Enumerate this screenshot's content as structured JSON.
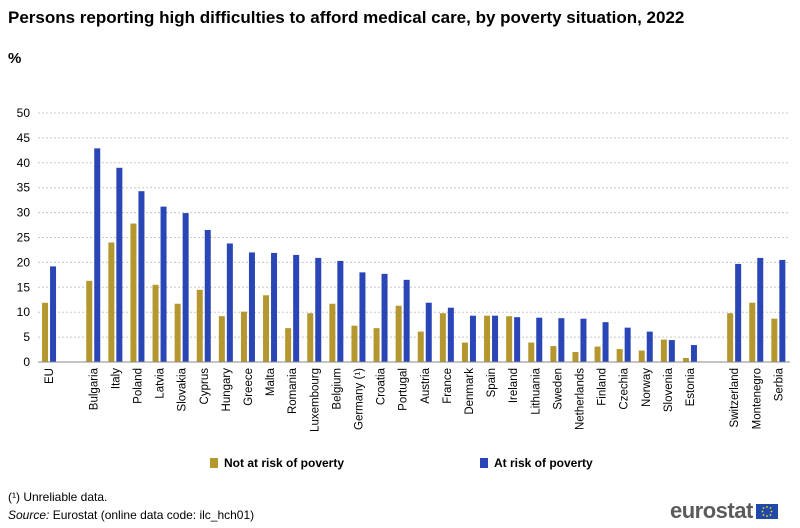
{
  "header": {
    "title": "Persons reporting high difficulties to afford medical care, by poverty situation, 2022",
    "unit": "%"
  },
  "legend": {
    "not_at_risk": "Not at risk of poverty",
    "at_risk": "At risk of poverty"
  },
  "footnotes": {
    "unreliable": "(¹) Unreliable data.",
    "source_label": "Source:",
    "source_text": " Eurostat (online data code: ilc_hch01)"
  },
  "logo": {
    "text": "eurostat"
  },
  "colors": {
    "not_at_risk": "#b5972f",
    "at_risk": "#2a45b5",
    "grid": "#c8c8c8",
    "axis": "#888888"
  },
  "chart_data": {
    "type": "bar",
    "title": "Persons reporting high difficulties to afford medical care, by poverty situation, 2022",
    "ylabel": "%",
    "xlabel": "",
    "ylim": [
      0,
      50
    ],
    "yticks": [
      0,
      5,
      10,
      15,
      20,
      25,
      30,
      35,
      40,
      45,
      50
    ],
    "grid": true,
    "legend_position": "bottom",
    "groups": [
      [
        "EU"
      ],
      [
        "Bulgaria",
        "Italy",
        "Poland",
        "Latvia",
        "Slovakia",
        "Cyprus",
        "Hungary",
        "Greece",
        "Malta",
        "Romania",
        "Luxembourg",
        "Belgium",
        "Germany (¹)",
        "Croatia",
        "Portugal",
        "Austria",
        "France",
        "Denmark",
        "Spain",
        "Ireland",
        "Lithuania",
        "Sweden",
        "Netherlands",
        "Finland",
        "Czechia",
        "Norway",
        "Slovenia",
        "Estonia"
      ],
      [
        "Switzerland",
        "Montenegro",
        "Serbia"
      ]
    ],
    "categories": [
      "EU",
      "Bulgaria",
      "Italy",
      "Poland",
      "Latvia",
      "Slovakia",
      "Cyprus",
      "Hungary",
      "Greece",
      "Malta",
      "Romania",
      "Luxembourg",
      "Belgium",
      "Germany (¹)",
      "Croatia",
      "Portugal",
      "Austria",
      "France",
      "Denmark",
      "Spain",
      "Ireland",
      "Lithuania",
      "Sweden",
      "Netherlands",
      "Finland",
      "Czechia",
      "Norway",
      "Slovenia",
      "Estonia",
      "Switzerland",
      "Montenegro",
      "Serbia"
    ],
    "series": [
      {
        "name": "Not at risk of poverty",
        "values": [
          11.9,
          16.3,
          24.0,
          27.8,
          15.5,
          11.7,
          14.5,
          9.2,
          10.1,
          13.4,
          6.8,
          9.8,
          11.7,
          7.3,
          6.8,
          11.3,
          6.1,
          9.8,
          3.9,
          9.3,
          9.2,
          3.9,
          3.2,
          2.0,
          3.1,
          2.6,
          2.3,
          4.5,
          0.8,
          9.8,
          11.9,
          8.7
        ]
      },
      {
        "name": "At risk of poverty",
        "values": [
          19.2,
          42.9,
          39.0,
          34.3,
          31.2,
          29.9,
          26.5,
          23.8,
          22.0,
          21.9,
          21.5,
          20.9,
          20.3,
          18.0,
          17.7,
          16.5,
          11.9,
          10.9,
          9.3,
          9.3,
          9.0,
          8.9,
          8.8,
          8.7,
          8.0,
          6.9,
          6.1,
          4.4,
          3.4,
          19.7,
          20.9,
          20.5
        ]
      }
    ]
  }
}
